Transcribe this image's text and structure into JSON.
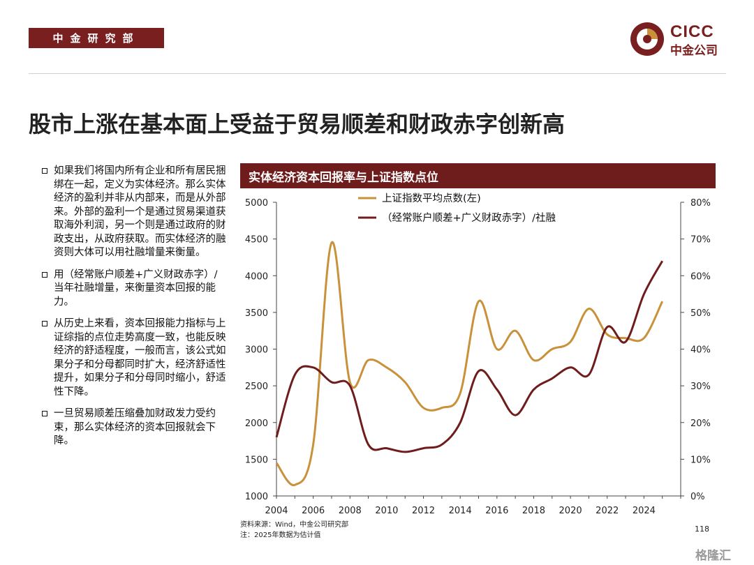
{
  "header": {
    "department": "中金研究部",
    "logo_en": "CICC",
    "logo_cn": "中金公司"
  },
  "title": "股市上涨在基本面上受益于贸易顺差和财政赤字创新高",
  "bullets": [
    "如果我们将国内所有企业和所有居民捆绑在一起，定义为实体经济。那么实体经济的盈利并非从内部来，而是从外部来。外部的盈利一个是通过贸易渠道获取海外利润，另一个则是通过政府的财政支出，从政府获取。而实体经济的融资则大体可以用社融增量来衡量。",
    "用（经常账户顺差+广义财政赤字）/当年社融增量，来衡量资本回报的能力。",
    "从历史上来看，资本回报能力指标与上证综指的点位走势高度一致，也能反映经济的舒适程度，一般而言，该公式如果分子和分母都同时扩大，经济舒适性提升，如果分子和分母同时缩小，舒适性下降。",
    "一旦贸易顺差压缩叠加财政发力受约束，那么实体经济的资本回报就会下降。"
  ],
  "chart_header": "实体经济资本回报率与上证指数点位",
  "chart_data": {
    "type": "line",
    "x": [
      2004,
      2005,
      2006,
      2007,
      2008,
      2009,
      2010,
      2011,
      2012,
      2013,
      2014,
      2015,
      2016,
      2017,
      2018,
      2019,
      2020,
      2021,
      2022,
      2023,
      2024,
      2025
    ],
    "xticks": [
      "2004",
      "2006",
      "2008",
      "2010",
      "2012",
      "2014",
      "2016",
      "2018",
      "2020",
      "2022",
      "2024"
    ],
    "y_left": {
      "ticks": [
        "5000",
        "4500",
        "4000",
        "3500",
        "3000",
        "2500",
        "2000",
        "1500",
        "1000"
      ],
      "range": [
        1000,
        5000
      ]
    },
    "y_right": {
      "ticks": [
        "80%",
        "70%",
        "60%",
        "50%",
        "40%",
        "30%",
        "20%",
        "10%",
        "0%"
      ],
      "range": [
        0,
        80
      ]
    },
    "series": [
      {
        "name": "上证指数平均点数(左)",
        "axis": "left",
        "color": "#c8913a",
        "values": [
          1450,
          1150,
          1700,
          4450,
          2550,
          2850,
          2750,
          2550,
          2200,
          2200,
          2400,
          3650,
          3000,
          3250,
          2850,
          3000,
          3100,
          3550,
          3200,
          3150,
          3150,
          3650
        ]
      },
      {
        "name": "（经常账户顺差+广义财政赤字）/社融",
        "axis": "right",
        "color": "#6e1c1c",
        "values": [
          16,
          33,
          35,
          31,
          30,
          14,
          13,
          12,
          13,
          14,
          20,
          34,
          29,
          22,
          29,
          32,
          35,
          33,
          46,
          42,
          55,
          64
        ]
      }
    ],
    "legend_position": "top-center",
    "grid": false
  },
  "source": "资料来源：Wind，中金公司研究部",
  "note": "注：2025年数据为估计值",
  "page_number": "118",
  "watermark": "格隆汇"
}
